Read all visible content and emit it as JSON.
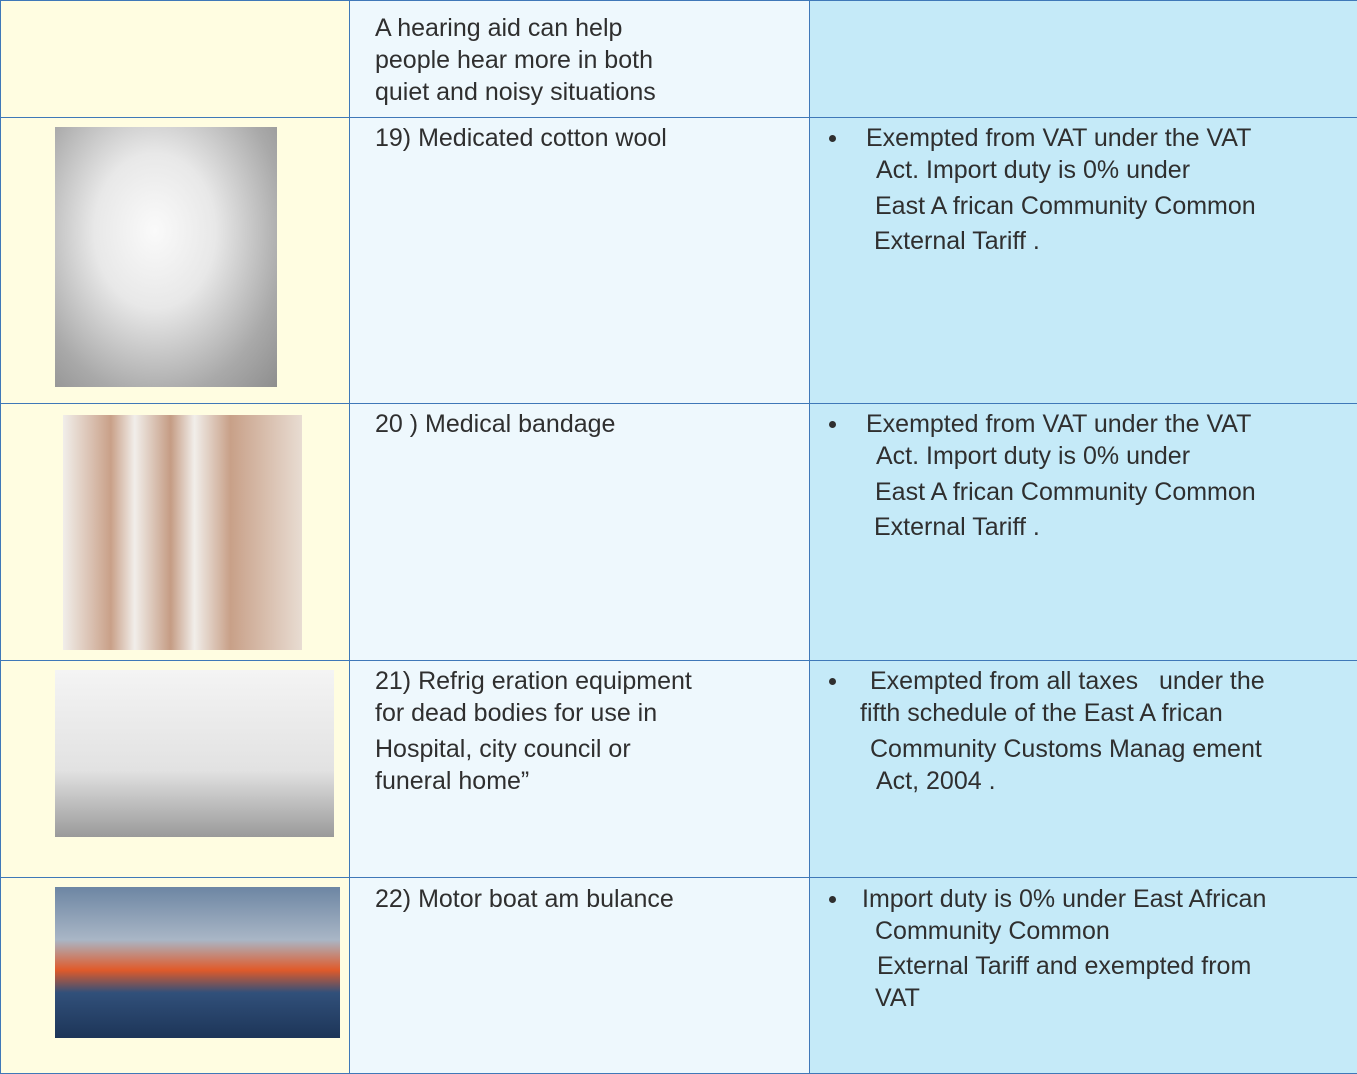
{
  "table": {
    "rows": [
      {
        "item": [
          "A hearing aid can help",
          "people hear more in both",
          "quiet and noisy situations"
        ]
      },
      {
        "item": [
          "19) Medicated cotton wool"
        ],
        "notes": [
          "Exempted from VAT under the VAT",
          "Act. Import duty is 0% under",
          "East A frican Community Common",
          "External Tariff ."
        ]
      },
      {
        "item": [
          "20 ) Medical bandage"
        ],
        "notes": [
          "Exempted from VAT under the VAT",
          "Act. Import duty is 0% under",
          "East A frican Community Common",
          "External Tariff ."
        ]
      },
      {
        "item": [
          "21) Refrig eration equipment",
          "for dead bodies for use in",
          "Hospital, city council or",
          "funeral home”"
        ],
        "notes": [
          "Exempted from all taxes   under the",
          "fifth schedule of the East A frican",
          "Community Customs Manag ement",
          "Act, 2004 ."
        ]
      },
      {
        "item": [
          "22) Motor boat am bulance"
        ],
        "notes": [
          "Import duty is 0% under East African",
          "Community Common",
          "External Tariff and exempted from",
          "VAT"
        ]
      }
    ]
  }
}
